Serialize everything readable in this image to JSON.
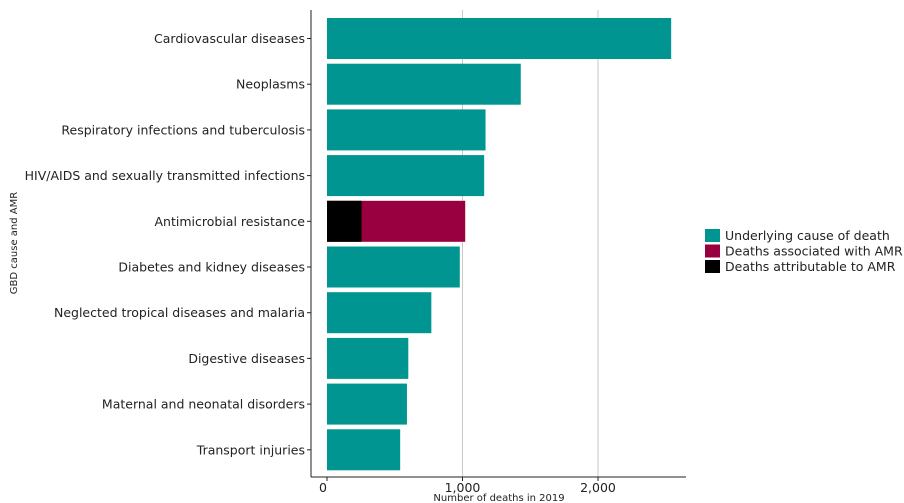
{
  "chart_data": {
    "type": "bar",
    "orientation": "horizontal",
    "stacked": true,
    "title": "",
    "xlabel": "Number of deaths in 2019",
    "ylabel": "GBD cause and AMR",
    "xlim": [
      0,
      2700
    ],
    "xticks": [
      0,
      1000,
      2000
    ],
    "xtick_labels": [
      "0",
      "1,000",
      "2,000"
    ],
    "grid": "vertical major gridlines",
    "legend_position": "right",
    "categories": [
      "Cardiovascular diseases",
      "Neoplasms",
      "Respiratory infections and tuberculosis",
      "HIV/AIDS and sexually transmitted infections",
      "Antimicrobial resistance",
      "Diabetes and kidney diseases",
      "Neglected tropical diseases and malaria",
      "Digestive diseases",
      "Maternal and neonatal disorders",
      "Transport injuries"
    ],
    "series": [
      {
        "name": "Underlying cause of death",
        "color": "#009590",
        "values": [
          2540,
          1430,
          1170,
          1160,
          0,
          980,
          770,
          600,
          590,
          540
        ]
      },
      {
        "name": "Deaths associated with AMR",
        "color": "#990040",
        "values": [
          0,
          0,
          0,
          0,
          1020,
          0,
          0,
          0,
          0,
          0
        ]
      },
      {
        "name": "Deaths attributable to AMR",
        "color": "#000000",
        "values": [
          0,
          0,
          0,
          0,
          255,
          0,
          0,
          0,
          0,
          0
        ]
      }
    ]
  }
}
